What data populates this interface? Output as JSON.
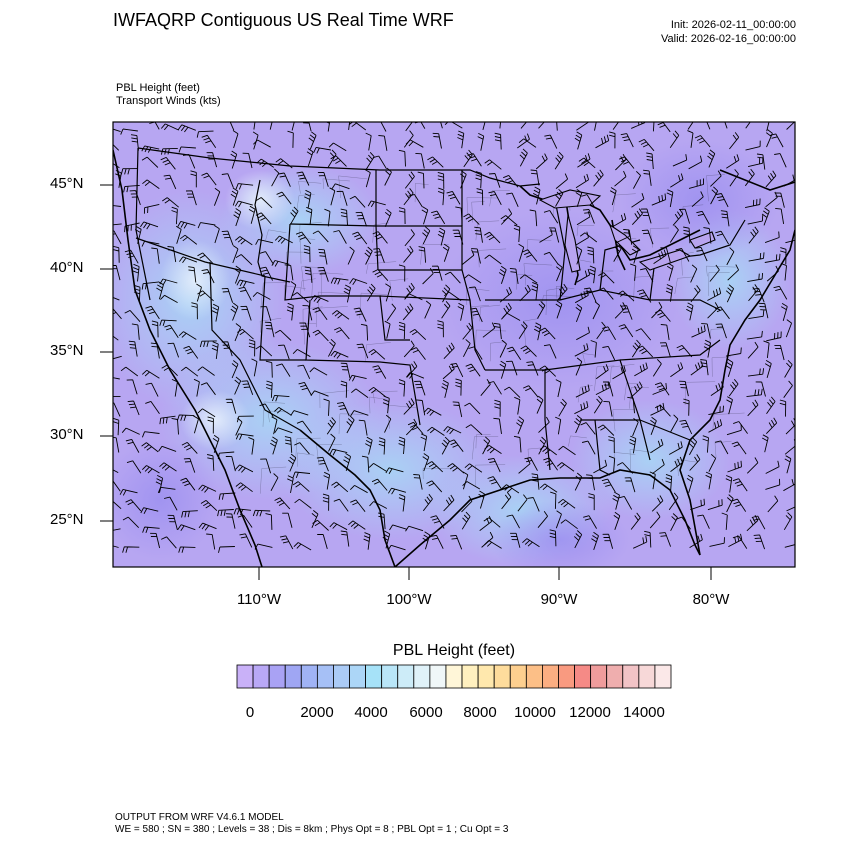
{
  "header": {
    "title": "IWFAQRP Contiguous US Real Time WRF",
    "init": "Init: 2026-02-11_00:00:00",
    "valid": "Valid: 2026-02-16_00:00:00"
  },
  "field_labels": {
    "line1": "PBL Height   (feet)",
    "line2": "Transport Winds   (kts)"
  },
  "map": {
    "lat_labels": [
      "45°N",
      "40°N",
      "35°N",
      "30°N",
      "25°N"
    ],
    "lon_labels": [
      "110°W",
      "100°W",
      "90°W",
      "80°W"
    ],
    "colors": {
      "land_low": "#b7a6f2",
      "water_low": "#bfb2f6",
      "mid_blue": "#a9d3f5",
      "light": "#e4eefb"
    }
  },
  "colorbar": {
    "title": "PBL Height  (feet)",
    "tick_labels": [
      "0",
      "2000",
      "4000",
      "6000",
      "8000",
      "10000",
      "12000",
      "14000"
    ],
    "colors": [
      "#c9b1f8",
      "#b9a8f6",
      "#a9a2f4",
      "#9fa6f3",
      "#a0b3f5",
      "#a6c0f6",
      "#abcbf6",
      "#acd6f7",
      "#a6e2f8",
      "#b9e6f8",
      "#cdecf8",
      "#e0f2f9",
      "#f0f7f8",
      "#fff6d8",
      "#fff0bf",
      "#ffe8ad",
      "#fedc9c",
      "#fdcf8f",
      "#fcbf87",
      "#fbae82",
      "#f99a80",
      "#f58a86",
      "#ef9c9c",
      "#efaeae",
      "#f2c3c6",
      "#f7d8d8",
      "#fbe8e8"
    ]
  },
  "footer": {
    "line1": "OUTPUT FROM WRF V4.6.1 MODEL",
    "line2": "WE = 580 ; SN = 380 ; Levels = 38 ; Dis = 8km ; Phys Opt = 8 ; PBL Opt = 1 ; Cu Opt = 3"
  }
}
